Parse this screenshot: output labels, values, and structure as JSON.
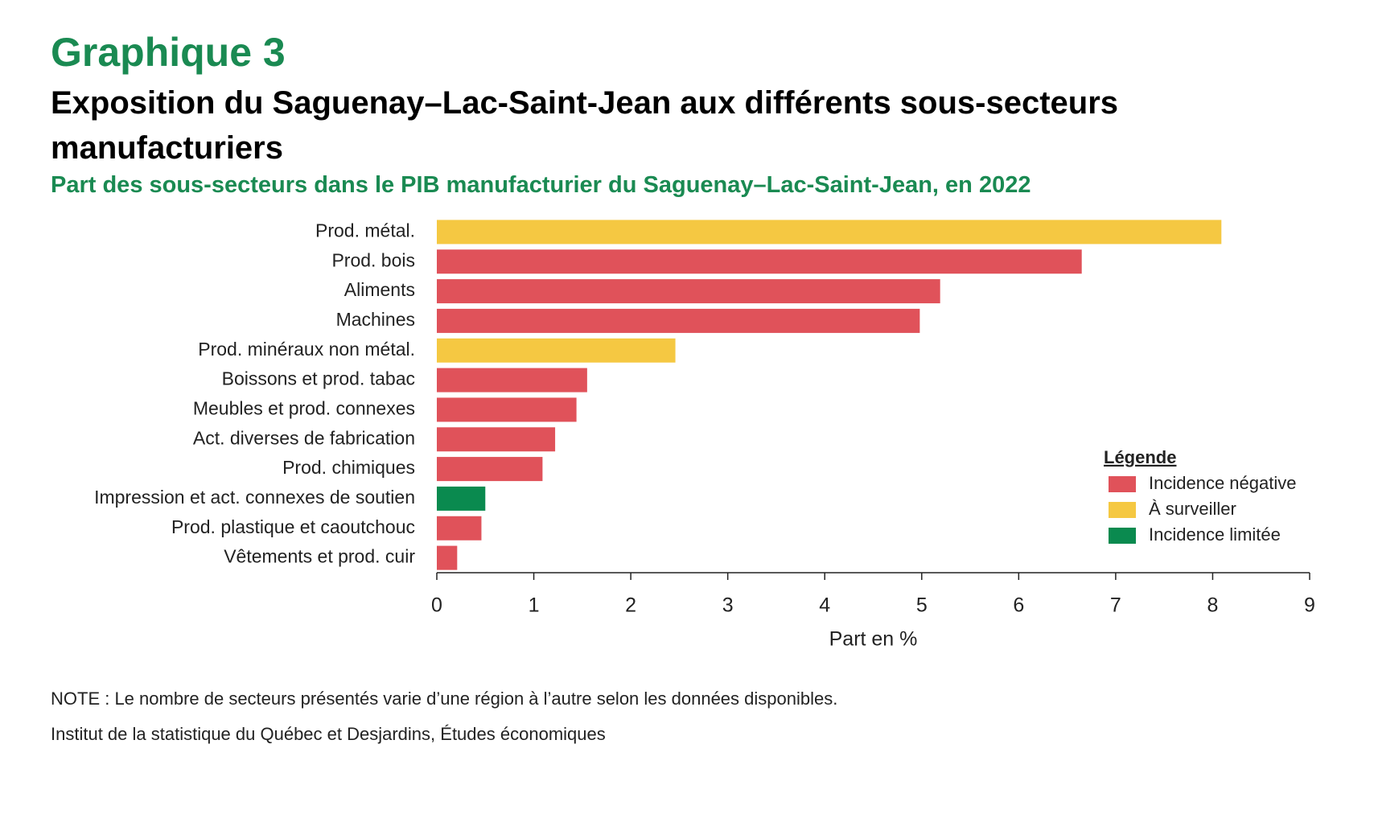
{
  "chart_data": {
    "type": "bar",
    "orientation": "horizontal",
    "label": "Graphique 3",
    "title": "Exposition du Saguenay–Lac-Saint-Jean aux différents sous-secteurs manufacturiers",
    "subtitle": "Part des sous-secteurs dans le PIB manufacturier du Saguenay–Lac-Saint-Jean, en 2022",
    "categories": [
      "Prod. métal.",
      "Prod. bois",
      "Aliments",
      "Machines",
      "Prod. minéraux non métal.",
      "Boissons et prod. tabac",
      "Meubles et prod. connexes",
      "Act. diverses de fabrication",
      "Prod. chimiques",
      "Impression et act. connexes de soutien",
      "Prod. plastique et caoutchouc",
      "Vêtements et prod. cuir"
    ],
    "series": [
      {
        "name": "Incidence négative",
        "color": "#e0525a",
        "values": [
          null,
          6.65,
          5.19,
          4.98,
          null,
          1.55,
          1.44,
          1.22,
          1.09,
          null,
          0.46,
          0.21
        ]
      },
      {
        "name": "À surveiller",
        "color": "#f5c842",
        "values": [
          8.09,
          null,
          null,
          null,
          2.46,
          null,
          null,
          null,
          null,
          null,
          null,
          null
        ]
      },
      {
        "name": "Incidence limitée",
        "color": "#0a8a4f",
        "values": [
          null,
          null,
          null,
          null,
          null,
          null,
          null,
          null,
          null,
          0.5,
          null,
          null
        ]
      }
    ],
    "legend_title": "Légende",
    "xlabel": "Part en %",
    "xlim": [
      0,
      9
    ],
    "xticks": [
      0,
      1,
      2,
      3,
      4,
      5,
      6,
      7,
      8,
      9
    ],
    "grid": false,
    "note": "NOTE : Le nombre de secteurs présentés varie d’une région à l’autre selon les données disponibles.",
    "source": "Institut de la statistique du Québec et Desjardins, Études économiques"
  }
}
